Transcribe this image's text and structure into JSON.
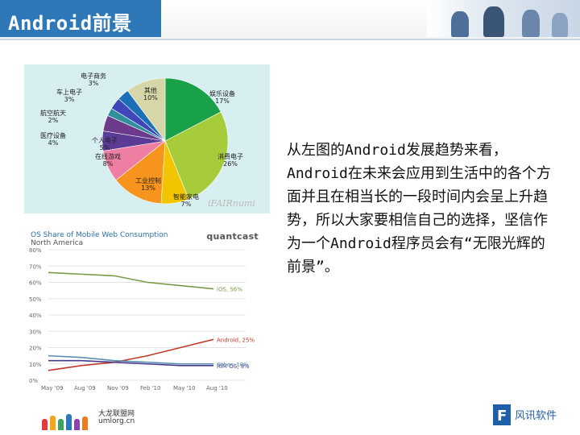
{
  "header": {
    "title": "Android前景"
  },
  "pie_chart": {
    "chart_data": {
      "type": "pie",
      "slices": [
        {
          "label": "娱乐设备",
          "value": 17,
          "label_value": "17%",
          "color": "#18a148"
        },
        {
          "label": "消费电子",
          "value": 26,
          "label_value": "26%",
          "color": "#a7cc3b"
        },
        {
          "label": "智能家电",
          "value": 7,
          "label_value": "7%",
          "color": "#f2c500"
        },
        {
          "label": "工业控制",
          "value": 13,
          "label_value": "13%",
          "color": "#f7941d"
        },
        {
          "label": "在线游戏",
          "value": 8,
          "label_value": "8%",
          "color": "#ee7fa2"
        },
        {
          "label": "个人电子",
          "value": 5,
          "label_value": "5%",
          "color": "#5b3b96"
        },
        {
          "label": "医疗设备",
          "value": 4,
          "label_value": "4%",
          "color": "#6d3b8c"
        },
        {
          "label": "航空航天",
          "value": 2,
          "label_value": "2%",
          "color": "#2f8f9d"
        },
        {
          "label": "车上电子",
          "value": 3,
          "label_value": "3%",
          "color": "#3f46b8"
        },
        {
          "label": "电子商务",
          "value": 3,
          "label_value": "3%",
          "color": "#1a6fb8"
        },
        {
          "label": "其他",
          "value": 10,
          "label_value": "10%",
          "color": "#d6d6a8"
        }
      ],
      "watermark": "iFAIRnumi"
    }
  },
  "line_chart": {
    "title": "OS Share of Mobile Web Consumption",
    "subtitle": "North America",
    "brand": "quantcast",
    "chart_data": {
      "type": "line",
      "x": [
        "May '09",
        "Aug '09",
        "Nov '09",
        "Feb '10",
        "May '10",
        "Aug '10"
      ],
      "ylim": [
        0,
        80
      ],
      "yticks": [
        "0%",
        "10%",
        "20%",
        "30%",
        "40%",
        "50%",
        "60%",
        "70%",
        "80%"
      ],
      "series": [
        {
          "name": "iOS, 56%",
          "color": "#7a9a4a",
          "values": [
            66,
            65,
            64,
            60,
            58,
            56
          ]
        },
        {
          "name": "Android, 25%",
          "color": "#c0392b",
          "values": [
            6,
            9,
            11,
            15,
            20,
            25
          ]
        },
        {
          "name": "RIM OS, 9%",
          "color": "#4a3a8a",
          "values": [
            12,
            12,
            11,
            10,
            9,
            9
          ]
        },
        {
          "name": "Other, 10%",
          "color": "#5a8fb0",
          "values": [
            15,
            14,
            12,
            11,
            10,
            10
          ]
        }
      ]
    }
  },
  "body_text": "从左图的Android发展趋势来看，Android在未来会应用到生活中的各个方面并且在相当长的一段时间内会呈上升趋势，所以大家要相信自己的选择，坚信作为一个Android程序员会有“无限光辉的前景”。",
  "footer": {
    "left_name": "大龙联盟网",
    "left_url": "umlorg.cn",
    "right_name": "风讯软件"
  }
}
